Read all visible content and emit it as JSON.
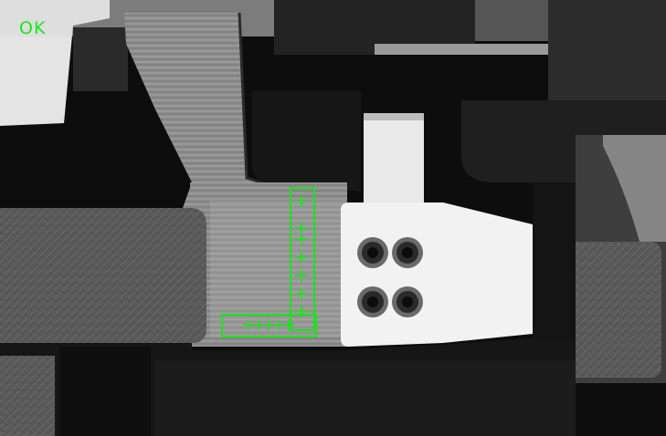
{
  "inspection": {
    "status": "OK",
    "overlay_color": "#19e619"
  }
}
